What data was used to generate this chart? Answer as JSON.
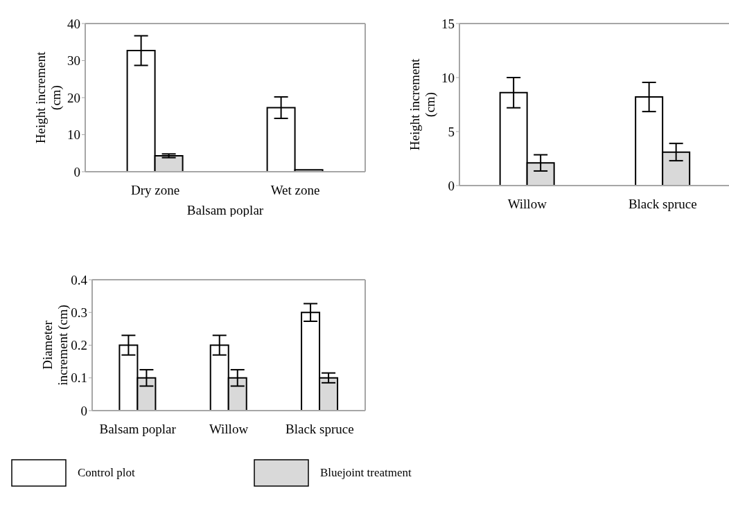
{
  "chart_data": [
    {
      "type": "bar",
      "xlabel": "Balsam poplar",
      "ylabel": "Height increment (cm)",
      "categories": [
        "Dry zone",
        "Wet zone"
      ],
      "ylim": [
        0,
        40
      ],
      "yticks": [
        0,
        10,
        20,
        30,
        40
      ],
      "series": [
        {
          "color": "#ffffff",
          "values": [
            32.7,
            17.3
          ],
          "errors": [
            4,
            2.9
          ]
        },
        {
          "color": "#d9d9d9",
          "values": [
            4.3,
            0.5
          ],
          "errors": [
            0.5,
            null
          ]
        }
      ],
      "grid": false,
      "legend": false
    },
    {
      "type": "bar",
      "ylabel": "Height increment (cm)",
      "categories": [
        "Willow",
        "Black spruce"
      ],
      "ylim": [
        0,
        15
      ],
      "yticks": [
        0,
        5,
        10,
        15
      ],
      "series": [
        {
          "color": "#ffffff",
          "values": [
            8.6,
            8.2
          ],
          "errors": [
            1.4,
            1.35
          ]
        },
        {
          "color": "#d9d9d9",
          "values": [
            2.1,
            3.1
          ],
          "errors": [
            0.75,
            0.8
          ]
        }
      ],
      "grid": false,
      "legend": false
    },
    {
      "type": "bar",
      "ylabel": "Diameter increment (cm)",
      "categories": [
        "Balsam poplar",
        "Willow",
        "Black spruce"
      ],
      "ylim": [
        0,
        0.4
      ],
      "yticks": [
        0,
        0.1,
        0.2,
        0.3,
        0.4
      ],
      "series": [
        {
          "name": "Control plot",
          "color": "#ffffff",
          "values": [
            0.2,
            0.2,
            0.3
          ],
          "errors": [
            0.03,
            0.03,
            0.027
          ]
        },
        {
          "name": "Bluejoint treatment",
          "color": "#d9d9d9",
          "values": [
            0.1,
            0.1,
            0.1
          ],
          "errors": [
            0.025,
            0.025,
            0.015
          ]
        }
      ],
      "grid": false,
      "legend": "bottom"
    }
  ]
}
